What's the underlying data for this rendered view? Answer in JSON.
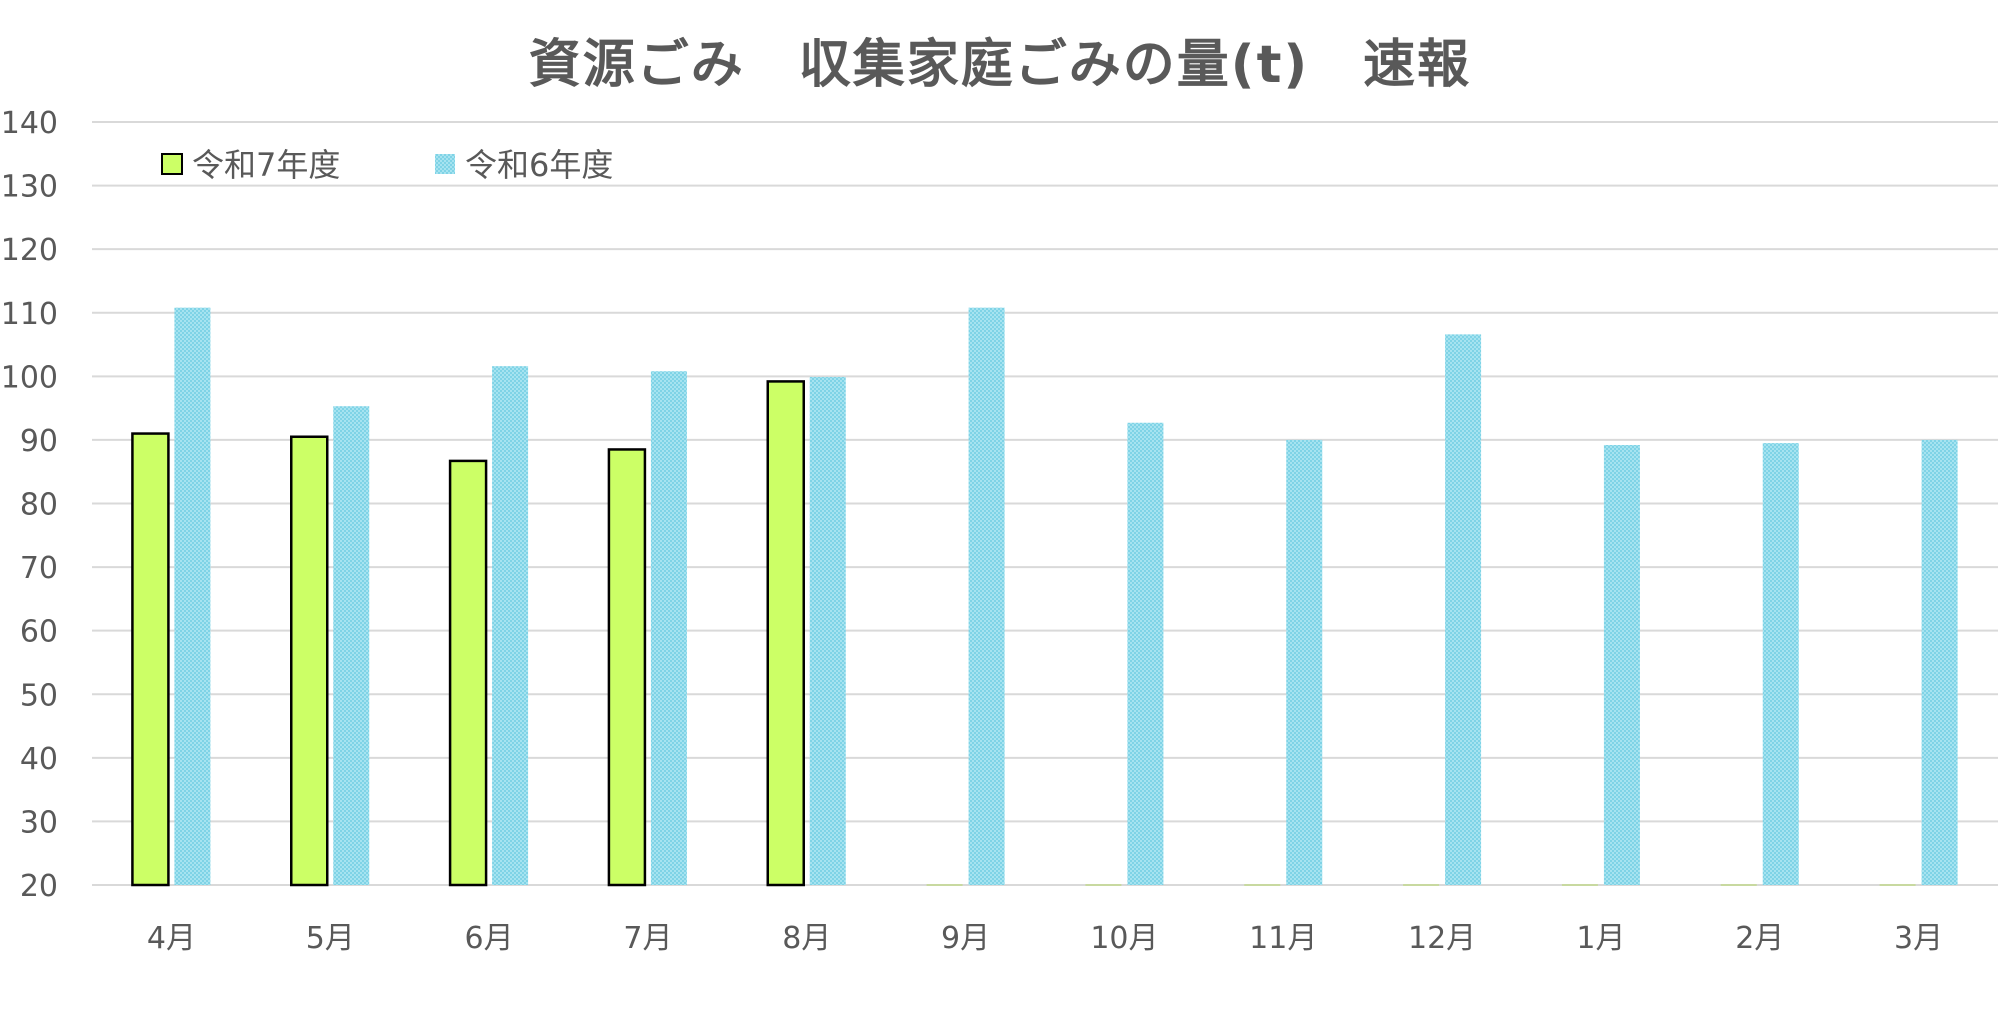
{
  "chart_data": {
    "type": "bar",
    "title": "資源ごみ　収集家庭ごみの量(t)　速報",
    "xlabel": "",
    "ylabel": "",
    "ylim": [
      20,
      140
    ],
    "yticks": [
      20,
      30,
      40,
      50,
      60,
      70,
      80,
      90,
      100,
      110,
      120,
      130,
      140
    ],
    "grid": true,
    "legend_position": "top-left",
    "categories": [
      "4月",
      "5月",
      "6月",
      "7月",
      "8月",
      "9月",
      "10月",
      "11月",
      "12月",
      "1月",
      "2月",
      "3月"
    ],
    "series": [
      {
        "name": "令和7年度",
        "color": "#ccff66",
        "values": [
          91,
          90.5,
          86.7,
          88.5,
          99.2,
          null,
          null,
          null,
          null,
          null,
          null,
          null
        ]
      },
      {
        "name": "令和6年度",
        "color": "#7fd3e6",
        "values": [
          110.8,
          95.3,
          101.6,
          100.8,
          99.9,
          110.8,
          92.7,
          90.0,
          106.6,
          89.2,
          89.5,
          90.0
        ]
      }
    ]
  }
}
